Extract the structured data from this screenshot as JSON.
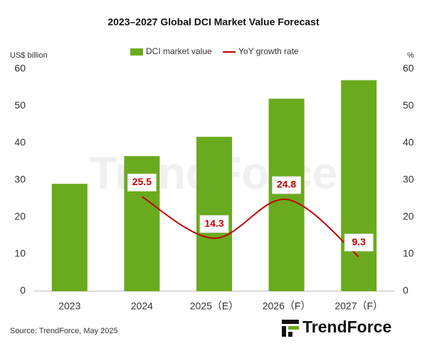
{
  "chart_data": {
    "type": "bar_line",
    "title": "2023–2027 Global DCI Market Value Forecast",
    "y_label": "US$ billion",
    "y2_label": "%",
    "categories": [
      "2023",
      "2024",
      "2025（E）",
      "2026（F）",
      "2027（F）"
    ],
    "series": [
      {
        "name": "DCI market value",
        "type": "bar",
        "color": "#6aaa1e",
        "values": [
          29,
          36.5,
          41.7,
          52,
          57
        ]
      },
      {
        "name": "YoY growth rate",
        "type": "line",
        "axis": "y2",
        "color": "#c00000",
        "values": [
          null,
          25.5,
          14.3,
          24.8,
          9.3
        ]
      }
    ],
    "ylim": [
      0,
      60
    ],
    "yticks": [
      0,
      10,
      20,
      30,
      40,
      50,
      60
    ],
    "y2lim": [
      0,
      60
    ],
    "y2ticks": [
      0,
      10,
      20,
      30,
      40,
      50,
      60
    ],
    "grid": false,
    "legend": "top",
    "source": "Source: TrendForce, May 2025",
    "watermark": "TrendForce",
    "logo": "TrendForce"
  }
}
